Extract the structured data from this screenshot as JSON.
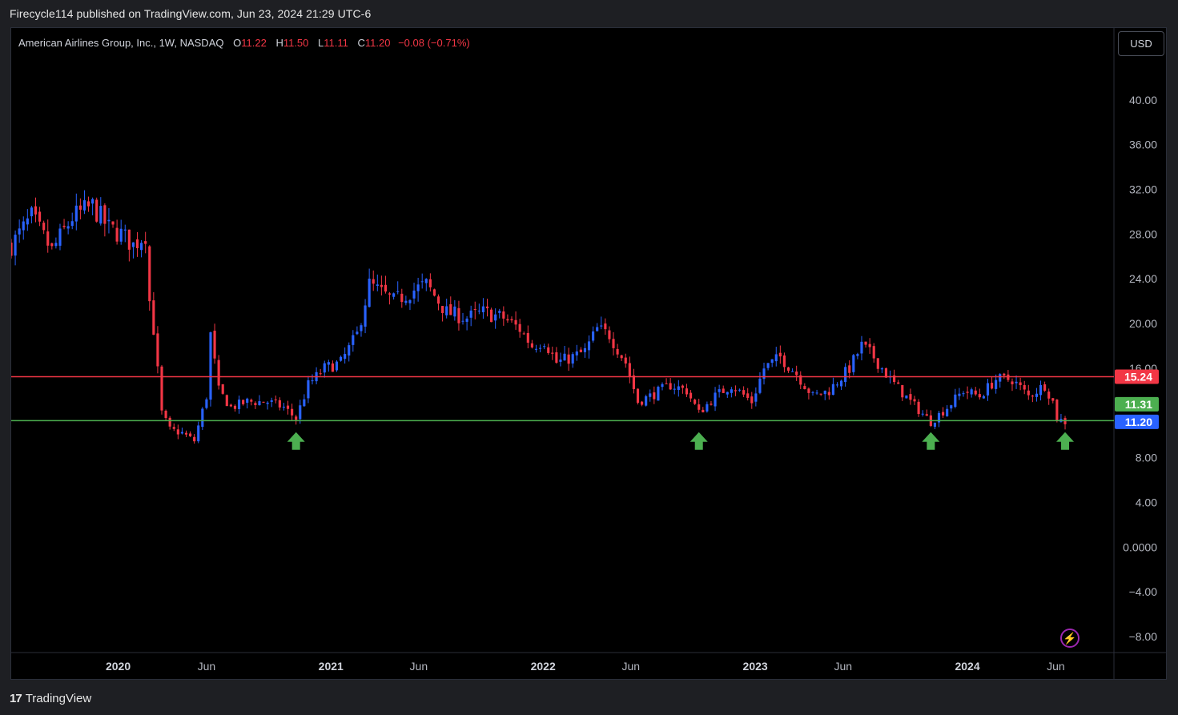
{
  "header": {
    "published_text": "Firecycle114 published on TradingView.com, Jun 23, 2024 21:29 UTC-6"
  },
  "legend": {
    "symbol": "American Airlines Group, Inc., 1W, NASDAQ",
    "open_label": "O",
    "open": "11.22",
    "high_label": "H",
    "high": "11.50",
    "low_label": "L",
    "low": "11.11",
    "close_label": "C",
    "close": "11.20",
    "change": "−0.08 (−0.71%)"
  },
  "toolbar": {
    "currency": "USD"
  },
  "footer": {
    "brand": "TradingView",
    "logo_glyph": "17"
  },
  "icons": {
    "flash": "flash-icon"
  },
  "colors": {
    "up": "#2962ff",
    "down": "#f23645",
    "resistance": "#f23645",
    "support": "#4caf50",
    "arrow": "#4caf50",
    "price_tag": "#2962ff",
    "green_tag": "#4caf50",
    "red_tag": "#f23645"
  },
  "chart_data": {
    "type": "candlestick",
    "interval": "1W",
    "ylim": [
      -9,
      46
    ],
    "y_ticks": [
      40,
      36,
      32,
      28,
      24,
      20,
      16,
      8,
      4,
      0,
      -4,
      -8
    ],
    "y_tick_labels": [
      "40.00",
      "36.00",
      "32.00",
      "28.00",
      "24.00",
      "20.00",
      "16.00",
      "8.00",
      "4.00",
      "0.0000",
      "−4.00",
      "−8.00"
    ],
    "x_range": [
      "2019-07-01",
      "2024-09-09"
    ],
    "x_ticks": [
      {
        "date": "2020-01-01",
        "label": "2020",
        "bold": true
      },
      {
        "date": "2020-06-01",
        "label": "Jun",
        "bold": false
      },
      {
        "date": "2021-01-01",
        "label": "2021",
        "bold": true
      },
      {
        "date": "2021-06-01",
        "label": "Jun",
        "bold": false
      },
      {
        "date": "2022-01-01",
        "label": "2022",
        "bold": true
      },
      {
        "date": "2022-06-01",
        "label": "Jun",
        "bold": false
      },
      {
        "date": "2023-01-01",
        "label": "2023",
        "bold": true
      },
      {
        "date": "2023-06-01",
        "label": "Jun",
        "bold": false
      },
      {
        "date": "2024-01-01",
        "label": "2024",
        "bold": true
      },
      {
        "date": "2024-06-01",
        "label": "Jun",
        "bold": false
      }
    ],
    "horizontal_lines": [
      {
        "name": "resistance",
        "price": 15.24,
        "label": "15.24"
      },
      {
        "name": "support",
        "price": 11.31,
        "label": "11.31"
      }
    ],
    "last_price": {
      "price": 11.2,
      "label": "11.20"
    },
    "arrows": [
      {
        "date": "2020-11-02",
        "price": 11.0
      },
      {
        "date": "2022-09-26",
        "price": 11.0
      },
      {
        "date": "2023-10-30",
        "price": 11.0
      },
      {
        "date": "2024-06-17",
        "price": 11.0
      }
    ],
    "close_path": [
      [
        "2019-07-01",
        27.0
      ],
      [
        "2019-08-05",
        29.5
      ],
      [
        "2019-09-09",
        26.5
      ],
      [
        "2019-10-14",
        29.5
      ],
      [
        "2019-11-18",
        30.5
      ],
      [
        "2019-12-16",
        28.5
      ],
      [
        "2020-01-06",
        28.0
      ],
      [
        "2020-01-27",
        27.0
      ],
      [
        "2020-02-17",
        28.0
      ],
      [
        "2020-02-24",
        22.0
      ],
      [
        "2020-03-02",
        19.5
      ],
      [
        "2020-03-16",
        12.0
      ],
      [
        "2020-03-30",
        10.5
      ],
      [
        "2020-04-20",
        10.2
      ],
      [
        "2020-05-11",
        9.5
      ],
      [
        "2020-06-01",
        13.5
      ],
      [
        "2020-06-08",
        19.0
      ],
      [
        "2020-06-22",
        14.0
      ],
      [
        "2020-07-13",
        12.5
      ],
      [
        "2020-08-10",
        13.0
      ],
      [
        "2020-09-14",
        13.0
      ],
      [
        "2020-10-12",
        12.5
      ],
      [
        "2020-11-02",
        11.5
      ],
      [
        "2020-11-23",
        14.5
      ],
      [
        "2020-12-21",
        16.0
      ],
      [
        "2021-01-18",
        16.5
      ],
      [
        "2021-02-15",
        19.0
      ],
      [
        "2021-03-08",
        23.5
      ],
      [
        "2021-03-22",
        23.0
      ],
      [
        "2021-04-19",
        22.0
      ],
      [
        "2021-05-24",
        23.0
      ],
      [
        "2021-06-14",
        23.5
      ],
      [
        "2021-07-19",
        21.0
      ],
      [
        "2021-08-23",
        20.5
      ],
      [
        "2021-09-20",
        21.0
      ],
      [
        "2021-10-25",
        20.5
      ],
      [
        "2021-11-22",
        19.5
      ],
      [
        "2021-12-13",
        18.0
      ],
      [
        "2022-01-03",
        18.5
      ],
      [
        "2022-01-24",
        16.5
      ],
      [
        "2022-02-21",
        17.0
      ],
      [
        "2022-03-14",
        17.5
      ],
      [
        "2022-04-04",
        19.5
      ],
      [
        "2022-04-25",
        19.0
      ],
      [
        "2022-05-23",
        16.5
      ],
      [
        "2022-06-13",
        13.0
      ],
      [
        "2022-07-04",
        13.5
      ],
      [
        "2022-08-08",
        14.5
      ],
      [
        "2022-09-05",
        14.0
      ],
      [
        "2022-09-26",
        12.0
      ],
      [
        "2022-10-24",
        13.5
      ],
      [
        "2022-11-21",
        14.5
      ],
      [
        "2022-12-26",
        13.0
      ],
      [
        "2023-01-16",
        16.0
      ],
      [
        "2023-02-13",
        17.0
      ],
      [
        "2023-03-13",
        15.5
      ],
      [
        "2023-04-10",
        13.5
      ],
      [
        "2023-05-08",
        14.0
      ],
      [
        "2023-06-12",
        16.0
      ],
      [
        "2023-07-03",
        18.0
      ],
      [
        "2023-07-24",
        17.0
      ],
      [
        "2023-08-21",
        15.0
      ],
      [
        "2023-09-25",
        13.0
      ],
      [
        "2023-10-30",
        11.2
      ],
      [
        "2023-11-27",
        12.5
      ],
      [
        "2023-12-25",
        14.0
      ],
      [
        "2024-01-22",
        13.5
      ],
      [
        "2024-02-19",
        15.0
      ],
      [
        "2024-03-18",
        15.0
      ],
      [
        "2024-04-15",
        13.5
      ],
      [
        "2024-05-13",
        14.5
      ],
      [
        "2024-05-27",
        13.0
      ],
      [
        "2024-06-03",
        11.5
      ],
      [
        "2024-06-17",
        11.2
      ]
    ]
  }
}
